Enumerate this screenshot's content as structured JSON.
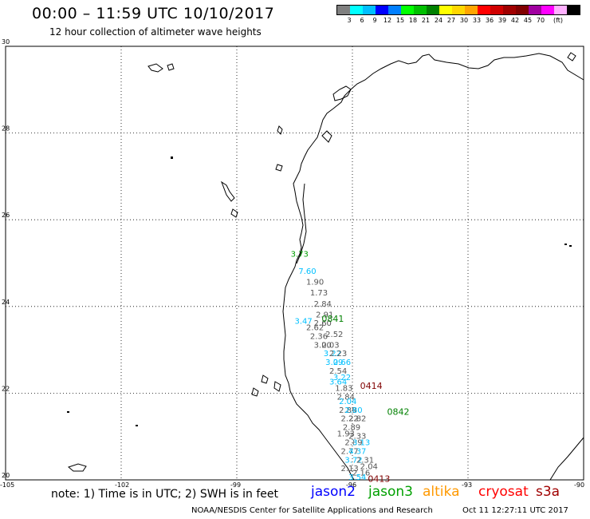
{
  "header": {
    "title": "00:00 – 11:59 UTC 10/10/2017",
    "subtitle": "12 hour collection of altimeter wave heights"
  },
  "scale": {
    "colors": [
      "#7f7f7f",
      "#00ffff",
      "#00bfff",
      "#0000ff",
      "#007fff",
      "#00ff00",
      "#00c000",
      "#008000",
      "#ffff00",
      "#ffd700",
      "#ffa500",
      "#ff0000",
      "#d00000",
      "#a00000",
      "#800000",
      "#a000a0",
      "#ff00ff",
      "#ffb0ff",
      "#000000"
    ],
    "labels": [
      "3",
      "6",
      "9",
      "12",
      "15",
      "18",
      "21",
      "24",
      "27",
      "30",
      "33",
      "36",
      "39",
      "42",
      "45",
      "70",
      "(ft)"
    ]
  },
  "axes": {
    "lat_ticks": [
      "30",
      "28",
      "26",
      "24",
      "22",
      "20"
    ],
    "lon_ticks": [
      "-105",
      "-102",
      "-99",
      "-96",
      "-93",
      "-90"
    ]
  },
  "observations": [
    {
      "text": "3.73",
      "lon": -97.6,
      "lat": 25.15,
      "color": "#00a000"
    },
    {
      "text": "7.60",
      "lon": -97.4,
      "lat": 24.75,
      "color": "#00c0ff"
    },
    {
      "text": "1.90",
      "lon": -97.2,
      "lat": 24.5,
      "color": "#555555"
    },
    {
      "text": "1.73",
      "lon": -97.1,
      "lat": 24.25,
      "color": "#555555"
    },
    {
      "text": "2.84",
      "lon": -97.0,
      "lat": 24.0,
      "color": "#555555"
    },
    {
      "text": "2.91",
      "lon": -96.95,
      "lat": 23.75,
      "color": "#555555"
    },
    {
      "text": "3.47",
      "lon": -97.5,
      "lat": 23.6,
      "color": "#00c0ff"
    },
    {
      "text": "2.60",
      "lon": -97.0,
      "lat": 23.55,
      "color": "#555555"
    },
    {
      "text": "2.62",
      "lon": -97.2,
      "lat": 23.45,
      "color": "#555555"
    },
    {
      "text": "2.52",
      "lon": -96.7,
      "lat": 23.3,
      "color": "#555555"
    },
    {
      "text": "2.36",
      "lon": -97.1,
      "lat": 23.25,
      "color": "#555555"
    },
    {
      "text": "3.00",
      "lon": -97.0,
      "lat": 23.05,
      "color": "#555555"
    },
    {
      "text": "2.03",
      "lon": -96.8,
      "lat": 23.05,
      "color": "#555555"
    },
    {
      "text": "3.22",
      "lon": -96.75,
      "lat": 22.85,
      "color": "#00c0ff"
    },
    {
      "text": "2.23",
      "lon": -96.6,
      "lat": 22.85,
      "color": "#555555"
    },
    {
      "text": "3.09",
      "lon": -96.7,
      "lat": 22.65,
      "color": "#00c0ff"
    },
    {
      "text": "2.66",
      "lon": -96.5,
      "lat": 22.65,
      "color": "#00c0ff"
    },
    {
      "text": "2.54",
      "lon": -96.6,
      "lat": 22.45,
      "color": "#555555"
    },
    {
      "text": "3.22",
      "lon": -96.5,
      "lat": 22.3,
      "color": "#00c0ff"
    },
    {
      "text": "3.64",
      "lon": -96.6,
      "lat": 22.2,
      "color": "#00c0ff"
    },
    {
      "text": "1.83",
      "lon": -96.45,
      "lat": 22.05,
      "color": "#555555"
    },
    {
      "text": "2.84",
      "lon": -96.4,
      "lat": 21.85,
      "color": "#555555"
    },
    {
      "text": "2.04",
      "lon": -96.35,
      "lat": 21.75,
      "color": "#00c0ff"
    },
    {
      "text": "2.89",
      "lon": -96.35,
      "lat": 21.55,
      "color": "#555555"
    },
    {
      "text": "2.80",
      "lon": -96.2,
      "lat": 21.55,
      "color": "#00c0ff"
    },
    {
      "text": "2.22",
      "lon": -96.3,
      "lat": 21.35,
      "color": "#555555"
    },
    {
      "text": "2.82",
      "lon": -96.1,
      "lat": 21.35,
      "color": "#555555"
    },
    {
      "text": "2.89",
      "lon": -96.25,
      "lat": 21.15,
      "color": "#555555"
    },
    {
      "text": "1.93",
      "lon": -96.4,
      "lat": 21.0,
      "color": "#555555"
    },
    {
      "text": "2.33",
      "lon": -96.1,
      "lat": 20.95,
      "color": "#555555"
    },
    {
      "text": "2.89",
      "lon": -96.2,
      "lat": 20.8,
      "color": "#555555"
    },
    {
      "text": "3.13",
      "lon": -96.0,
      "lat": 20.8,
      "color": "#00c0ff"
    },
    {
      "text": "2.77",
      "lon": -96.3,
      "lat": 20.6,
      "color": "#555555"
    },
    {
      "text": "4.37",
      "lon": -96.1,
      "lat": 20.6,
      "color": "#00c0ff"
    },
    {
      "text": "3.72",
      "lon": -96.2,
      "lat": 20.4,
      "color": "#00c0ff"
    },
    {
      "text": "2.31",
      "lon": -95.9,
      "lat": 20.4,
      "color": "#555555"
    },
    {
      "text": "2.13",
      "lon": -96.3,
      "lat": 20.2,
      "color": "#555555"
    },
    {
      "text": "2.04",
      "lon": -95.8,
      "lat": 20.25,
      "color": "#555555"
    },
    {
      "text": "2.16",
      "lon": -96.0,
      "lat": 20.1,
      "color": "#555555"
    },
    {
      "text": "3.54",
      "lon": -96.1,
      "lat": 20.0,
      "color": "#00c0ff"
    }
  ],
  "pass_labels": [
    {
      "text": "0841",
      "lon": -96.8,
      "lat": 23.65,
      "color": "#008000"
    },
    {
      "text": "0414",
      "lon": -95.8,
      "lat": 22.1,
      "color": "#800000"
    },
    {
      "text": "0842",
      "lon": -95.1,
      "lat": 21.5,
      "color": "#008000"
    },
    {
      "text": "0413",
      "lon": -95.6,
      "lat": 19.95,
      "color": "#800000"
    }
  ],
  "footer": {
    "note": "note: 1) Time is in UTC; 2) SWH is in feet",
    "satellites": [
      {
        "name": "jason2",
        "color": "#0000ff"
      },
      {
        "name": "jason3",
        "color": "#00a000"
      },
      {
        "name": "altika",
        "color": "#ff9900"
      },
      {
        "name": "cryosat",
        "color": "#ff0000"
      },
      {
        "name": "s3a",
        "color": "#a00000"
      }
    ],
    "credit": "NOAA/NESDIS Center for Satellite Applications and Research",
    "timestamp": "Oct 11 12:27:11 UTC 2017"
  }
}
